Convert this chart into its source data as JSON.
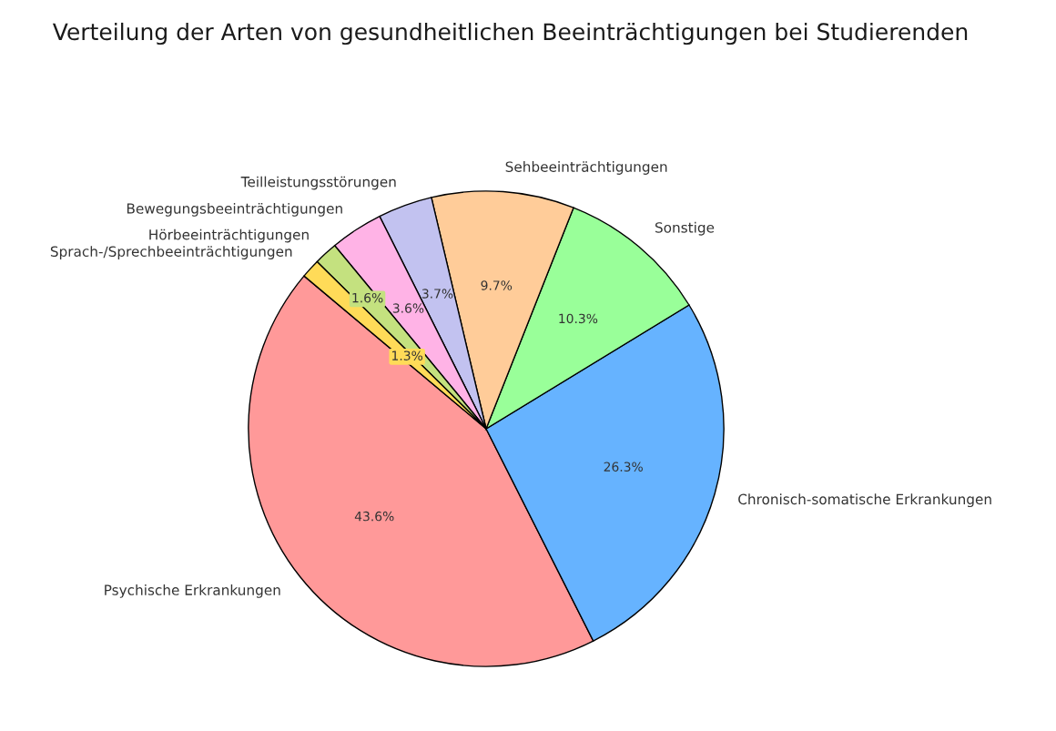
{
  "chart_data": {
    "type": "pie",
    "title": "Verteilung der Arten von gesundheitlichen Beeinträchtigungen bei Studierenden",
    "categories": [
      "Psychische Erkrankungen",
      "Chronisch-somatische Erkrankungen",
      "Sonstige",
      "Sehbeeinträchtigungen",
      "Teilleistungsstörungen",
      "Bewegungsbeeinträchtigungen",
      "Hörbeeinträchtigungen",
      "Sprach-/Sprechbeeinträchtigungen"
    ],
    "values": [
      43.6,
      26.3,
      10.3,
      9.7,
      3.7,
      3.6,
      1.6,
      1.3
    ],
    "value_labels": [
      "43.6%",
      "26.3%",
      "10.3%",
      "9.7%",
      "3.7%",
      "3.6%",
      "1.6%",
      "1.3%"
    ],
    "colors": [
      "#ff9999",
      "#66b3ff",
      "#99ff99",
      "#ffcc99",
      "#c2c2f0",
      "#ffb3e6",
      "#c4e17f",
      "#ffdb58"
    ]
  }
}
